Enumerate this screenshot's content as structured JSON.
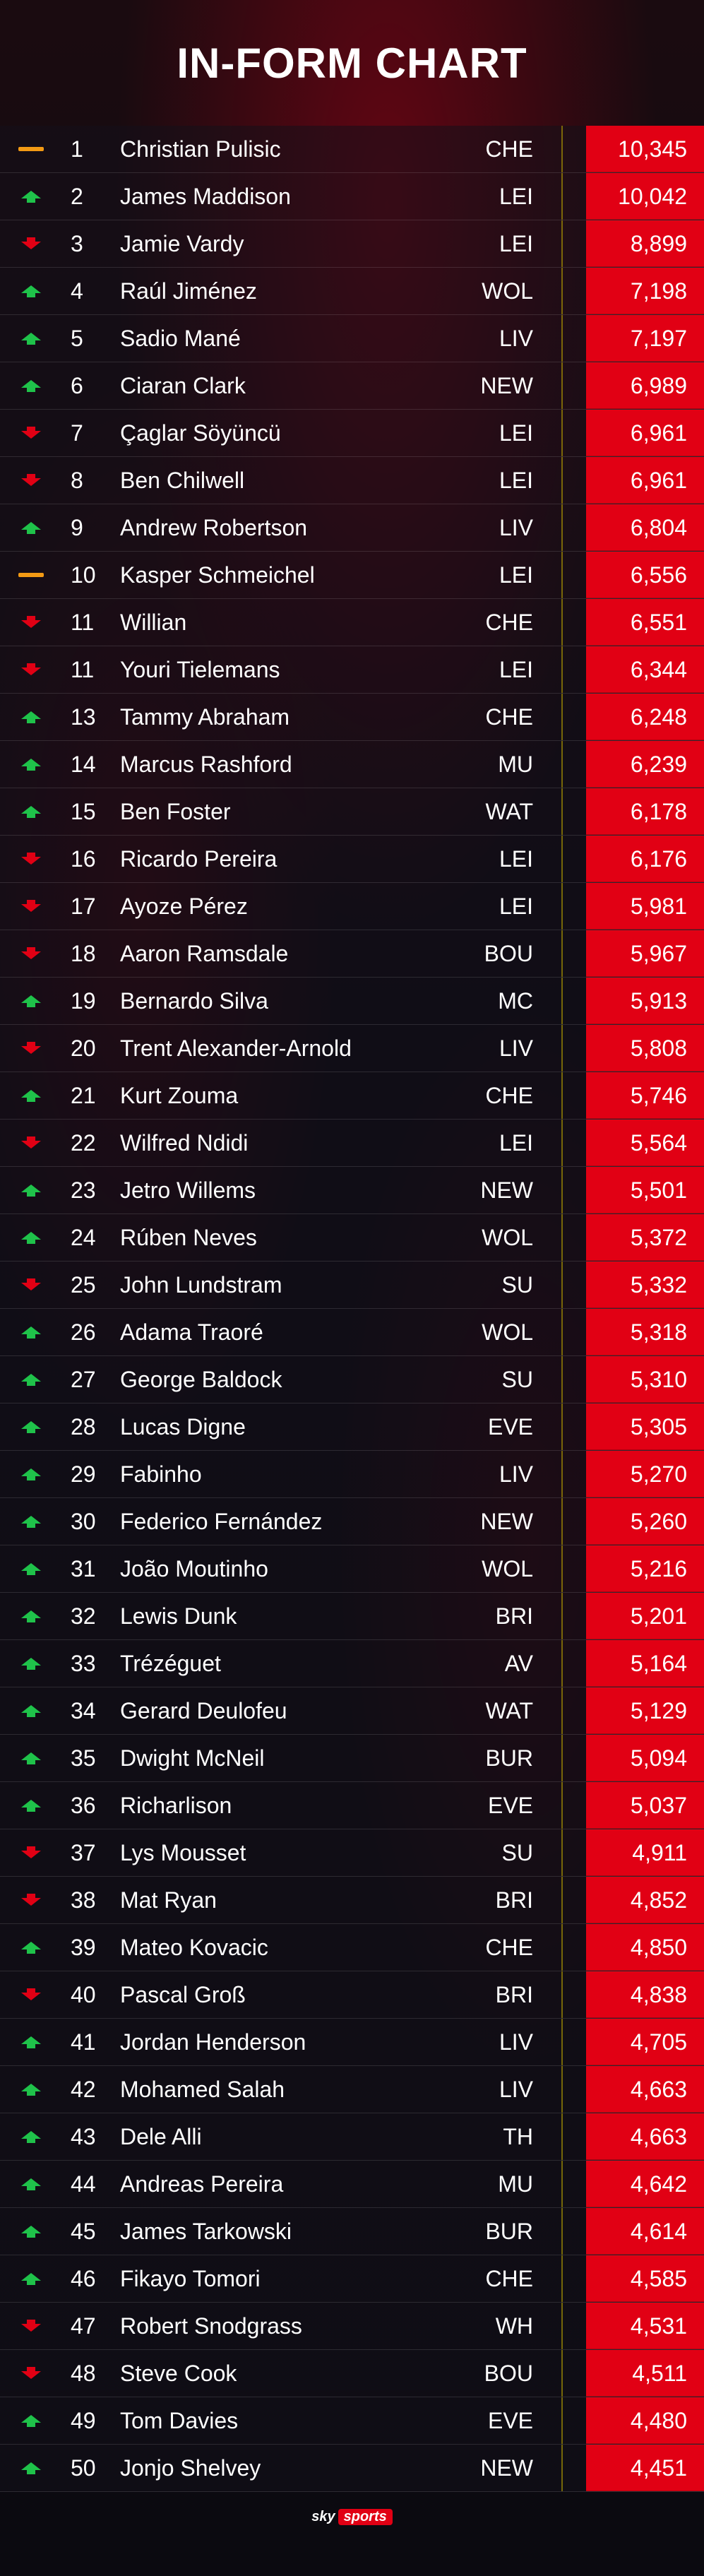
{
  "title": "IN-FORM CHART",
  "colors": {
    "accent": "#e10014",
    "up": "#1fc24a",
    "down": "#e10014",
    "same": "#f39a14"
  },
  "footer": {
    "logo_sky": "sky",
    "logo_sports": "sports"
  },
  "rows": [
    {
      "trend": "same",
      "rank": "1",
      "name": "Christian Pulisic",
      "club": "CHE",
      "points": "10,345"
    },
    {
      "trend": "up",
      "rank": "2",
      "name": "James Maddison",
      "club": "LEI",
      "points": "10,042"
    },
    {
      "trend": "down",
      "rank": "3",
      "name": "Jamie Vardy",
      "club": "LEI",
      "points": "8,899"
    },
    {
      "trend": "up",
      "rank": "4",
      "name": "Raúl Jiménez",
      "club": "WOL",
      "points": "7,198"
    },
    {
      "trend": "up",
      "rank": "5",
      "name": "Sadio Mané",
      "club": "LIV",
      "points": "7,197"
    },
    {
      "trend": "up",
      "rank": "6",
      "name": "Ciaran Clark",
      "club": "NEW",
      "points": "6,989"
    },
    {
      "trend": "down",
      "rank": "7",
      "name": "Çaglar Söyüncü",
      "club": "LEI",
      "points": "6,961"
    },
    {
      "trend": "down",
      "rank": "8",
      "name": "Ben Chilwell",
      "club": "LEI",
      "points": "6,961"
    },
    {
      "trend": "up",
      "rank": "9",
      "name": "Andrew Robertson",
      "club": "LIV",
      "points": "6,804"
    },
    {
      "trend": "same",
      "rank": "10",
      "name": "Kasper Schmeichel",
      "club": "LEI",
      "points": "6,556"
    },
    {
      "trend": "down",
      "rank": "11",
      "name": "Willian",
      "club": "CHE",
      "points": "6,551"
    },
    {
      "trend": "down",
      "rank": "11",
      "name": "Youri Tielemans",
      "club": "LEI",
      "points": "6,344"
    },
    {
      "trend": "up",
      "rank": "13",
      "name": "Tammy Abraham",
      "club": "CHE",
      "points": "6,248"
    },
    {
      "trend": "up",
      "rank": "14",
      "name": "Marcus Rashford",
      "club": "MU",
      "points": "6,239"
    },
    {
      "trend": "up",
      "rank": "15",
      "name": "Ben Foster",
      "club": "WAT",
      "points": "6,178"
    },
    {
      "trend": "down",
      "rank": "16",
      "name": "Ricardo Pereira",
      "club": "LEI",
      "points": "6,176"
    },
    {
      "trend": "down",
      "rank": "17",
      "name": "Ayoze Pérez",
      "club": "LEI",
      "points": "5,981"
    },
    {
      "trend": "down",
      "rank": "18",
      "name": "Aaron Ramsdale",
      "club": "BOU",
      "points": "5,967"
    },
    {
      "trend": "up",
      "rank": "19",
      "name": "Bernardo Silva",
      "club": "MC",
      "points": "5,913"
    },
    {
      "trend": "down",
      "rank": "20",
      "name": "Trent Alexander-Arnold",
      "club": "LIV",
      "points": "5,808"
    },
    {
      "trend": "up",
      "rank": "21",
      "name": "Kurt Zouma",
      "club": "CHE",
      "points": "5,746"
    },
    {
      "trend": "down",
      "rank": "22",
      "name": "Wilfred Ndidi",
      "club": "LEI",
      "points": "5,564"
    },
    {
      "trend": "up",
      "rank": "23",
      "name": "Jetro Willems",
      "club": "NEW",
      "points": "5,501"
    },
    {
      "trend": "up",
      "rank": "24",
      "name": "Rúben Neves",
      "club": "WOL",
      "points": "5,372"
    },
    {
      "trend": "down",
      "rank": "25",
      "name": "John Lundstram",
      "club": "SU",
      "points": "5,332"
    },
    {
      "trend": "up",
      "rank": "26",
      "name": "Adama Traoré",
      "club": "WOL",
      "points": "5,318"
    },
    {
      "trend": "up",
      "rank": "27",
      "name": "George Baldock",
      "club": "SU",
      "points": "5,310"
    },
    {
      "trend": "up",
      "rank": "28",
      "name": "Lucas Digne",
      "club": "EVE",
      "points": "5,305"
    },
    {
      "trend": "up",
      "rank": "29",
      "name": "Fabinho",
      "club": "LIV",
      "points": "5,270"
    },
    {
      "trend": "up",
      "rank": "30",
      "name": "Federico Fernández",
      "club": "NEW",
      "points": "5,260"
    },
    {
      "trend": "up",
      "rank": "31",
      "name": "João Moutinho",
      "club": "WOL",
      "points": "5,216"
    },
    {
      "trend": "up",
      "rank": "32",
      "name": "Lewis Dunk",
      "club": "BRI",
      "points": "5,201"
    },
    {
      "trend": "up",
      "rank": "33",
      "name": "Trézéguet",
      "club": "AV",
      "points": "5,164"
    },
    {
      "trend": "up",
      "rank": "34",
      "name": "Gerard Deulofeu",
      "club": "WAT",
      "points": "5,129"
    },
    {
      "trend": "up",
      "rank": "35",
      "name": "Dwight McNeil",
      "club": "BUR",
      "points": "5,094"
    },
    {
      "trend": "up",
      "rank": "36",
      "name": "Richarlison",
      "club": "EVE",
      "points": "5,037"
    },
    {
      "trend": "down",
      "rank": "37",
      "name": "Lys Mousset",
      "club": "SU",
      "points": "4,911"
    },
    {
      "trend": "down",
      "rank": "38",
      "name": "Mat Ryan",
      "club": "BRI",
      "points": "4,852"
    },
    {
      "trend": "up",
      "rank": "39",
      "name": "Mateo Kovacic",
      "club": "CHE",
      "points": "4,850"
    },
    {
      "trend": "down",
      "rank": "40",
      "name": "Pascal Groß",
      "club": "BRI",
      "points": "4,838"
    },
    {
      "trend": "up",
      "rank": "41",
      "name": "Jordan Henderson",
      "club": "LIV",
      "points": "4,705"
    },
    {
      "trend": "up",
      "rank": "42",
      "name": "Mohamed Salah",
      "club": "LIV",
      "points": "4,663"
    },
    {
      "trend": "up",
      "rank": "43",
      "name": "Dele Alli",
      "club": "TH",
      "points": "4,663"
    },
    {
      "trend": "up",
      "rank": "44",
      "name": "Andreas Pereira",
      "club": "MU",
      "points": "4,642"
    },
    {
      "trend": "up",
      "rank": "45",
      "name": "James Tarkowski",
      "club": "BUR",
      "points": "4,614"
    },
    {
      "trend": "up",
      "rank": "46",
      "name": "Fikayo Tomori",
      "club": "CHE",
      "points": "4,585"
    },
    {
      "trend": "down",
      "rank": "47",
      "name": "Robert Snodgrass",
      "club": "WH",
      "points": "4,531"
    },
    {
      "trend": "down",
      "rank": "48",
      "name": "Steve Cook",
      "club": "BOU",
      "points": "4,511"
    },
    {
      "trend": "up",
      "rank": "49",
      "name": "Tom Davies",
      "club": "EVE",
      "points": "4,480"
    },
    {
      "trend": "up",
      "rank": "50",
      "name": "Jonjo Shelvey",
      "club": "NEW",
      "points": "4,451"
    }
  ]
}
